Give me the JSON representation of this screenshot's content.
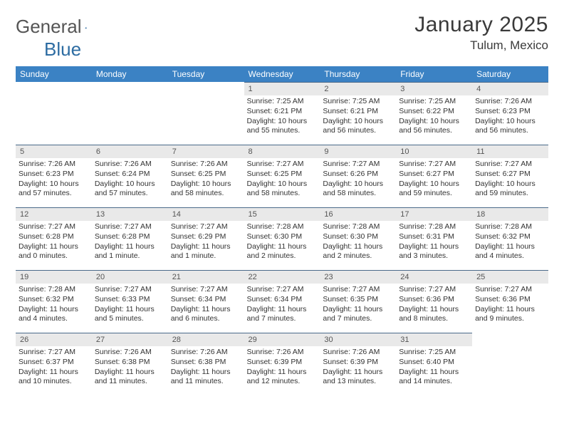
{
  "logo": {
    "text1": "General",
    "text2": "Blue"
  },
  "title": "January 2025",
  "location": "Tulum, Mexico",
  "header_bg": "#3b82c4",
  "header_fg": "#ffffff",
  "daynum_bg": "#e9e9e9",
  "row_divider": "#4a6a8a",
  "weekdays": [
    "Sunday",
    "Monday",
    "Tuesday",
    "Wednesday",
    "Thursday",
    "Friday",
    "Saturday"
  ],
  "weeks": [
    [
      null,
      null,
      null,
      {
        "n": "1",
        "sr": "7:25 AM",
        "ss": "6:21 PM",
        "dl": "10 hours and 55 minutes."
      },
      {
        "n": "2",
        "sr": "7:25 AM",
        "ss": "6:21 PM",
        "dl": "10 hours and 56 minutes."
      },
      {
        "n": "3",
        "sr": "7:25 AM",
        "ss": "6:22 PM",
        "dl": "10 hours and 56 minutes."
      },
      {
        "n": "4",
        "sr": "7:26 AM",
        "ss": "6:23 PM",
        "dl": "10 hours and 56 minutes."
      }
    ],
    [
      {
        "n": "5",
        "sr": "7:26 AM",
        "ss": "6:23 PM",
        "dl": "10 hours and 57 minutes."
      },
      {
        "n": "6",
        "sr": "7:26 AM",
        "ss": "6:24 PM",
        "dl": "10 hours and 57 minutes."
      },
      {
        "n": "7",
        "sr": "7:26 AM",
        "ss": "6:25 PM",
        "dl": "10 hours and 58 minutes."
      },
      {
        "n": "8",
        "sr": "7:27 AM",
        "ss": "6:25 PM",
        "dl": "10 hours and 58 minutes."
      },
      {
        "n": "9",
        "sr": "7:27 AM",
        "ss": "6:26 PM",
        "dl": "10 hours and 58 minutes."
      },
      {
        "n": "10",
        "sr": "7:27 AM",
        "ss": "6:27 PM",
        "dl": "10 hours and 59 minutes."
      },
      {
        "n": "11",
        "sr": "7:27 AM",
        "ss": "6:27 PM",
        "dl": "10 hours and 59 minutes."
      }
    ],
    [
      {
        "n": "12",
        "sr": "7:27 AM",
        "ss": "6:28 PM",
        "dl": "11 hours and 0 minutes."
      },
      {
        "n": "13",
        "sr": "7:27 AM",
        "ss": "6:28 PM",
        "dl": "11 hours and 1 minute."
      },
      {
        "n": "14",
        "sr": "7:27 AM",
        "ss": "6:29 PM",
        "dl": "11 hours and 1 minute."
      },
      {
        "n": "15",
        "sr": "7:28 AM",
        "ss": "6:30 PM",
        "dl": "11 hours and 2 minutes."
      },
      {
        "n": "16",
        "sr": "7:28 AM",
        "ss": "6:30 PM",
        "dl": "11 hours and 2 minutes."
      },
      {
        "n": "17",
        "sr": "7:28 AM",
        "ss": "6:31 PM",
        "dl": "11 hours and 3 minutes."
      },
      {
        "n": "18",
        "sr": "7:28 AM",
        "ss": "6:32 PM",
        "dl": "11 hours and 4 minutes."
      }
    ],
    [
      {
        "n": "19",
        "sr": "7:28 AM",
        "ss": "6:32 PM",
        "dl": "11 hours and 4 minutes."
      },
      {
        "n": "20",
        "sr": "7:27 AM",
        "ss": "6:33 PM",
        "dl": "11 hours and 5 minutes."
      },
      {
        "n": "21",
        "sr": "7:27 AM",
        "ss": "6:34 PM",
        "dl": "11 hours and 6 minutes."
      },
      {
        "n": "22",
        "sr": "7:27 AM",
        "ss": "6:34 PM",
        "dl": "11 hours and 7 minutes."
      },
      {
        "n": "23",
        "sr": "7:27 AM",
        "ss": "6:35 PM",
        "dl": "11 hours and 7 minutes."
      },
      {
        "n": "24",
        "sr": "7:27 AM",
        "ss": "6:36 PM",
        "dl": "11 hours and 8 minutes."
      },
      {
        "n": "25",
        "sr": "7:27 AM",
        "ss": "6:36 PM",
        "dl": "11 hours and 9 minutes."
      }
    ],
    [
      {
        "n": "26",
        "sr": "7:27 AM",
        "ss": "6:37 PM",
        "dl": "11 hours and 10 minutes."
      },
      {
        "n": "27",
        "sr": "7:26 AM",
        "ss": "6:38 PM",
        "dl": "11 hours and 11 minutes."
      },
      {
        "n": "28",
        "sr": "7:26 AM",
        "ss": "6:38 PM",
        "dl": "11 hours and 11 minutes."
      },
      {
        "n": "29",
        "sr": "7:26 AM",
        "ss": "6:39 PM",
        "dl": "11 hours and 12 minutes."
      },
      {
        "n": "30",
        "sr": "7:26 AM",
        "ss": "6:39 PM",
        "dl": "11 hours and 13 minutes."
      },
      {
        "n": "31",
        "sr": "7:25 AM",
        "ss": "6:40 PM",
        "dl": "11 hours and 14 minutes."
      },
      null
    ]
  ],
  "labels": {
    "sunrise": "Sunrise:",
    "sunset": "Sunset:",
    "daylight": "Daylight:"
  }
}
